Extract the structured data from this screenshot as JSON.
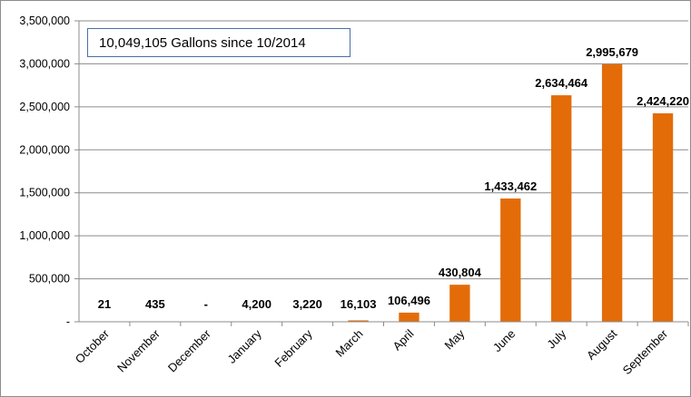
{
  "chart_data": {
    "type": "bar",
    "title": "",
    "xlabel": "",
    "ylabel": "",
    "annotation": "10,049,105 Gallons since 10/2014",
    "categories": [
      "October",
      "November",
      "December",
      "January",
      "February",
      "March",
      "April",
      "May",
      "June",
      "July",
      "August",
      "September"
    ],
    "values": [
      21,
      435,
      0,
      4200,
      3220,
      16103,
      106496,
      430804,
      1433462,
      2634464,
      2995679,
      2424220
    ],
    "data_labels": [
      "21",
      "435",
      "-",
      "4,200",
      "3,220",
      "16,103",
      "106,496",
      "430,804",
      "1,433,462",
      "2,634,464",
      "2,995,679",
      "2,424,220"
    ],
    "y_tick_labels": [
      "-",
      "500,000",
      "1,000,000",
      "1,500,000",
      "2,000,000",
      "2,500,000",
      "3,000,000",
      "3,500,000"
    ],
    "y_ticks": [
      0,
      500000,
      1000000,
      1500000,
      2000000,
      2500000,
      3000000,
      3500000
    ],
    "ylim": [
      0,
      3500000
    ],
    "grid": true,
    "legend": "none",
    "bar_color": "#e36c09"
  }
}
